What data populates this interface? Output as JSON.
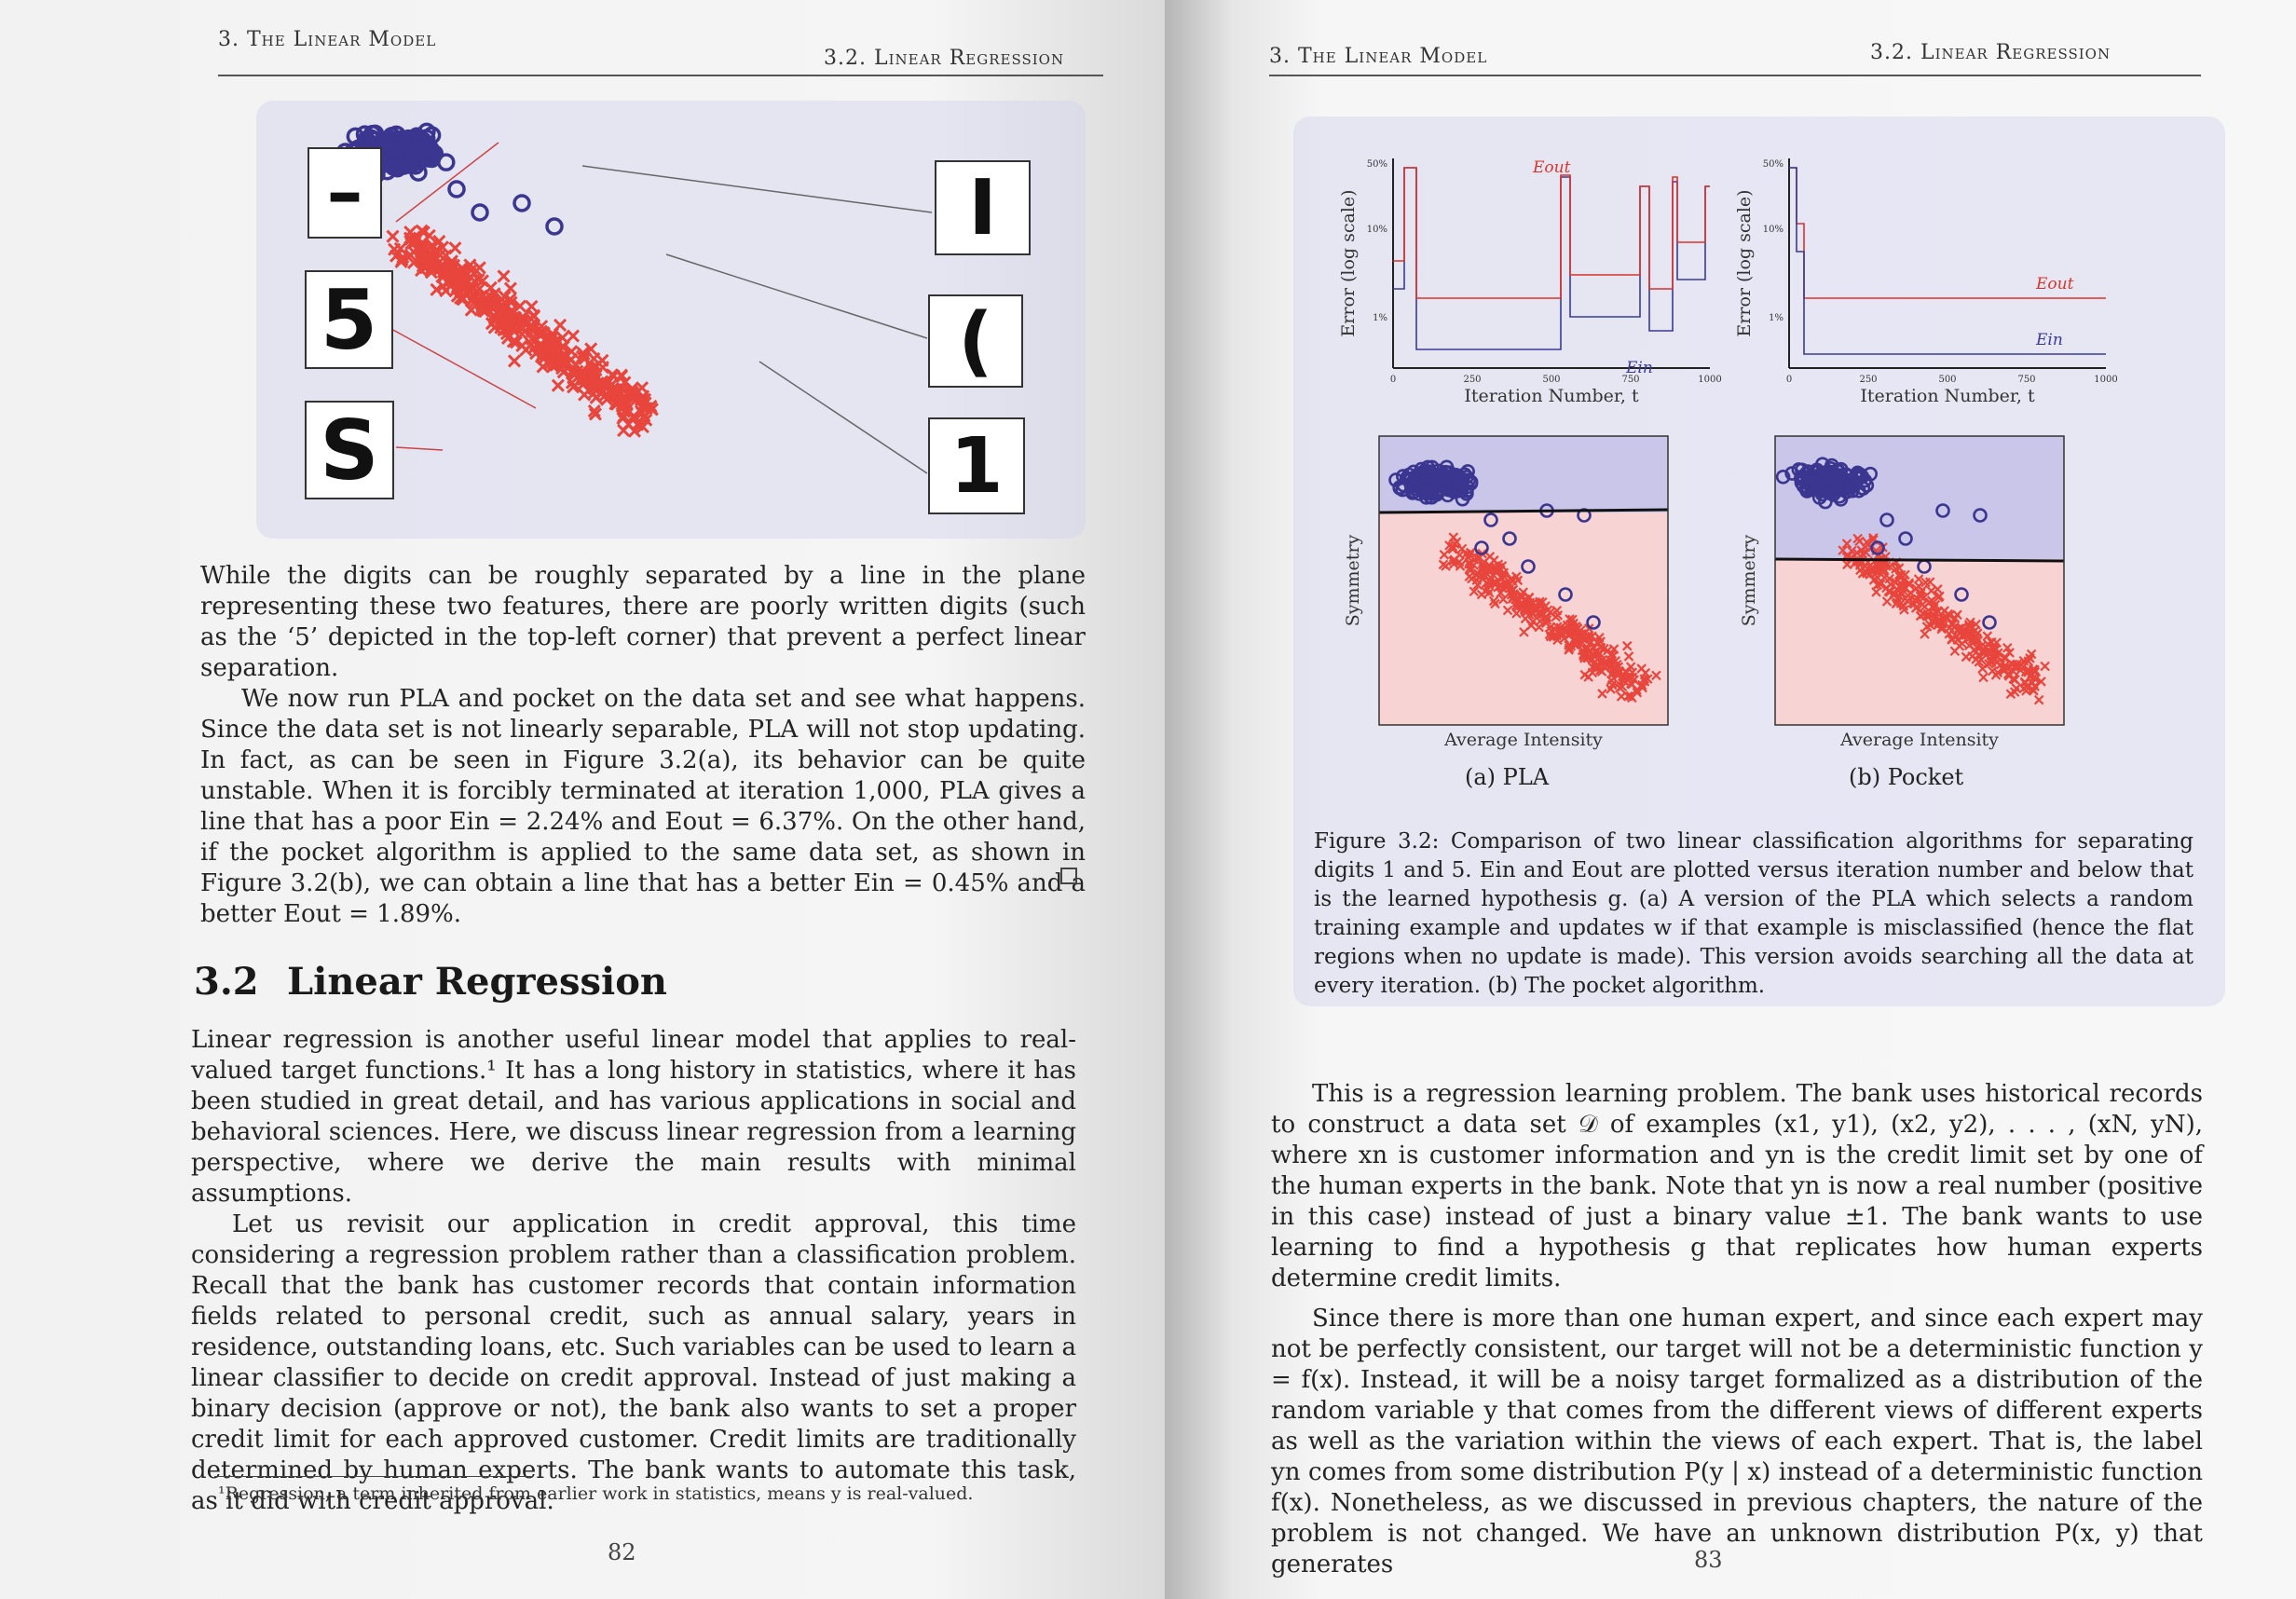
{
  "left_page": {
    "running_head_left": "3. The Linear Model",
    "running_head_right": "3.2. Linear Regression",
    "paragraphs_intro": [
      "While the digits can be roughly separated by a line in the plane representing these two features, there are poorly written digits (such as the ‘5’ depicted in the top-left corner) that prevent a perfect linear separation.",
      "We now run PLA and pocket on the data set and see what happens. Since the data set is not linearly separable, PLA will not stop updating. In fact, as can be seen in Figure 3.2(a), its behavior can be quite unstable. When it is forcibly terminated at iteration 1,000, PLA gives a line that has a poor Ein = 2.24% and Eout = 6.37%. On the other hand, if the pocket algorithm is applied to the same data set, as shown in Figure 3.2(b), we can obtain a line that has a better Ein = 0.45% and a better Eout = 1.89%."
    ],
    "section_number": "3.2",
    "section_title": "Linear Regression",
    "paragraphs_section": [
      "Linear regression is another useful linear model that applies to real-valued target functions.¹ It has a long history in statistics, where it has been studied in great detail, and has various applications in social and behavioral sciences. Here, we discuss linear regression from a learning perspective, where we derive the main results with minimal assumptions.",
      "Let us revisit our application in credit approval, this time considering a regression problem rather than a classification problem. Recall that the bank has customer records that contain information fields related to personal credit, such as annual salary, years in residence, outstanding loans, etc. Such variables can be used to learn a linear classifier to decide on credit approval. Instead of just making a binary decision (approve or not), the bank also wants to set a proper credit limit for each approved customer. Credit limits are traditionally determined by human experts. The bank wants to automate this task, as it did with credit approval."
    ],
    "footnote": "¹Regression, a term inherited from earlier work in statistics, means y is real-valued.",
    "page_number": "82",
    "digit_images": {
      "left": [
        "–",
        "5",
        "S"
      ],
      "right": [
        "I",
        "(",
        "1"
      ]
    }
  },
  "right_page": {
    "running_head_left": "3. The Linear Model",
    "running_head_right": "3.2. Linear Regression",
    "figure": {
      "error_ylabel": "Error (log scale)",
      "error_xlabel": "Iteration Number, t",
      "error_yticks": [
        "50%",
        "10%",
        "1%"
      ],
      "error_xticks": [
        "0",
        "250",
        "500",
        "750",
        "1000"
      ],
      "eout_label": "Eout",
      "ein_label": "Ein",
      "scatter_ylabel": "Symmetry",
      "scatter_xlabel": "Average Intensity",
      "sub_a": "(a) PLA",
      "sub_b": "(b) Pocket",
      "caption": "Figure 3.2: Comparison of two linear classification algorithms for separating digits 1 and 5. Ein and Eout are plotted versus iteration number and below that is the learned hypothesis g. (a) A version of the PLA which selects a random training example and updates w if that example is misclassified (hence the flat regions when no update is made). This version avoids searching all the data at every iteration. (b) The pocket algorithm."
    },
    "paragraphs": [
      "This is a regression learning problem. The bank uses historical records to construct a data set 𝒟 of examples (x1, y1), (x2, y2), . . . , (xN, yN), where xn is customer information and yn is the credit limit set by one of the human experts in the bank. Note that yn is now a real number (positive in this case) instead of just a binary value ±1. The bank wants to use learning to find a hypothesis g that replicates how human experts determine credit limits.",
      "Since there is more than one human expert, and since each expert may not be perfectly consistent, our target will not be a deterministic function y = f(x). Instead, it will be a noisy target formalized as a distribution of the random variable y that comes from the different views of different experts as well as the variation within the views of each expert. That is, the label yn comes from some distribution P(y | x) instead of a deterministic function f(x). Nonetheless, as we discussed in previous chapters, the nature of the problem is not changed. We have an unknown distribution P(x, y) that generates"
    ],
    "page_number": "83"
  },
  "colors": {
    "digit1_blue": "#3b3690",
    "digit5_red": "#e8453c",
    "region_blue": "#c9c6ea",
    "region_pink": "#f7d3d3"
  }
}
